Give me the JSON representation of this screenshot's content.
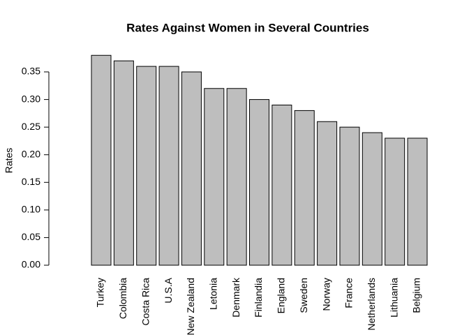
{
  "chart_data": {
    "type": "bar",
    "title": "Rates Against Women in Several Countries",
    "y_label": "Rates",
    "categories": [
      "Turkey",
      "Colombia",
      "Costa Rica",
      "U.S.A",
      "New Zealand",
      "Letonia",
      "Denmark",
      "Finlandia",
      "England",
      "Sweden",
      "Norway",
      "France",
      "Netherlands",
      "Lithuania",
      "Belgium"
    ],
    "values": [
      0.38,
      0.37,
      0.36,
      0.36,
      0.35,
      0.32,
      0.32,
      0.3,
      0.29,
      0.28,
      0.26,
      0.25,
      0.24,
      0.23,
      0.23
    ],
    "color": "#bebebe",
    "ylim": [
      0,
      0.38
    ],
    "yticks": [
      {
        "value": 0,
        "label": "0.00"
      },
      {
        "value": 0.05,
        "label": "0.05"
      },
      {
        "value": 0.1,
        "label": "0.10"
      },
      {
        "value": 0.15,
        "label": "0.15"
      },
      {
        "value": 0.2,
        "label": "0.20"
      },
      {
        "value": 0.25,
        "label": "0.25"
      },
      {
        "value": 0.3,
        "label": "0.30"
      },
      {
        "value": 0.35,
        "label": "0.35"
      }
    ]
  }
}
